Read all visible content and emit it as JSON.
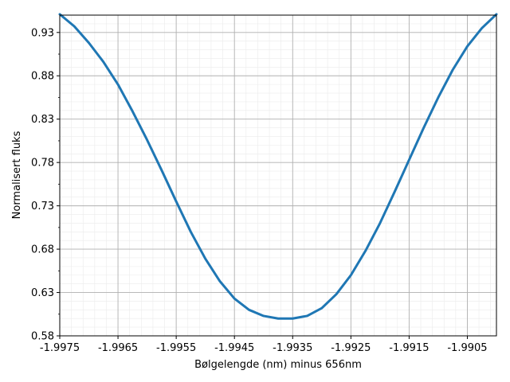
{
  "chart_data": {
    "type": "line",
    "title": "",
    "xlabel": "Bølgelengde (nm) minus 656nm",
    "ylabel": "Normalisert fluks",
    "xlim": [
      -1.9975,
      -1.99
    ],
    "ylim": [
      0.58,
      0.95
    ],
    "x_ticks": [
      -1.9975,
      -1.9965,
      -1.9955,
      -1.9945,
      -1.9935,
      -1.9925,
      -1.9915,
      -1.9905
    ],
    "x_tick_labels": [
      "-1.9975",
      "-1.9965",
      "-1.9955",
      "-1.9945",
      "-1.9935",
      "-1.9925",
      "-1.9915",
      "-1.9905"
    ],
    "y_ticks": [
      0.58,
      0.63,
      0.68,
      0.73,
      0.78,
      0.83,
      0.88,
      0.93
    ],
    "y_tick_labels": [
      "0.58",
      "0.63",
      "0.68",
      "0.73",
      "0.78",
      "0.83",
      "0.88",
      "0.93"
    ],
    "grid": "major and minor",
    "line_color": "#1f77b4",
    "series": [
      {
        "x": [
          -1.9975,
          -1.99725,
          -1.997,
          -1.99675,
          -1.9965,
          -1.99625,
          -1.996,
          -1.99575,
          -1.9955,
          -1.99525,
          -1.995,
          -1.99475,
          -1.9945,
          -1.99425,
          -1.994,
          -1.99375,
          -1.9935,
          -1.99325,
          -1.993,
          -1.99275,
          -1.9925,
          -1.99225,
          -1.992,
          -1.99175,
          -1.9915,
          -1.99125,
          -1.991,
          -1.99075,
          -1.9905,
          -1.99025,
          -1.99
        ],
        "values": [
          0.951,
          0.937,
          0.918,
          0.896,
          0.87,
          0.839,
          0.806,
          0.771,
          0.735,
          0.7,
          0.669,
          0.643,
          0.623,
          0.61,
          0.603,
          0.6,
          0.6,
          0.603,
          0.612,
          0.628,
          0.65,
          0.678,
          0.71,
          0.746,
          0.783,
          0.82,
          0.855,
          0.887,
          0.914,
          0.935,
          0.951
        ]
      }
    ]
  }
}
